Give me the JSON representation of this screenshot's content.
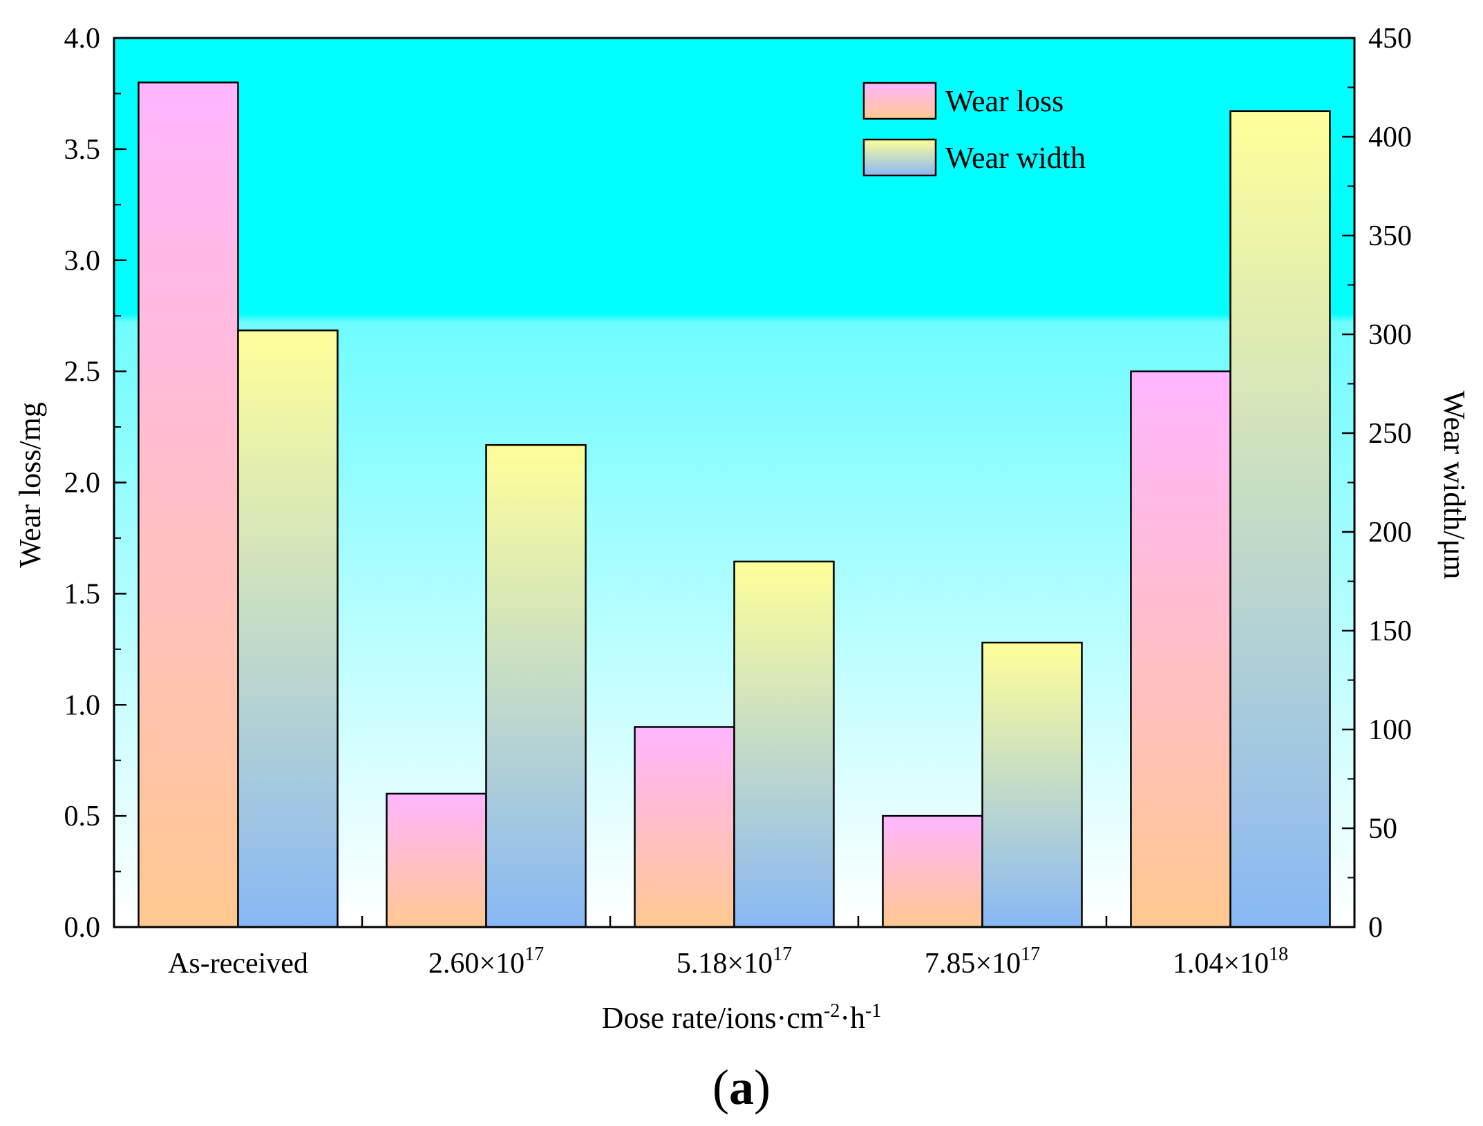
{
  "chart_data": {
    "type": "bar",
    "categories": [
      "As-received",
      "2.60×10^17",
      "5.18×10^17",
      "7.85×10^17",
      "1.04×10^18"
    ],
    "category_labels": [
      {
        "base": "As-received",
        "exp": ""
      },
      {
        "base": "2.60×10",
        "exp": "17"
      },
      {
        "base": "5.18×10",
        "exp": "17"
      },
      {
        "base": "7.85×10",
        "exp": "17"
      },
      {
        "base": "1.04×10",
        "exp": "18"
      }
    ],
    "series": [
      {
        "name": "Wear loss",
        "axis": "left",
        "values": [
          3.8,
          0.6,
          0.9,
          0.5,
          2.5
        ]
      },
      {
        "name": "Wear width",
        "axis": "right",
        "values": [
          302,
          244,
          185,
          144,
          413
        ]
      }
    ],
    "xlabel_parts": {
      "a": "Dose rate/ions·cm",
      "b": "-2",
      "c": "·h",
      "d": "-1"
    },
    "ylabel": "Wear loss/mg",
    "y2label": "Wear width/μm",
    "ylim": [
      0,
      4.0
    ],
    "y2lim": [
      0,
      450
    ],
    "yticks": [
      "0.0",
      "0.5",
      "1.0",
      "1.5",
      "2.0",
      "2.5",
      "3.0",
      "3.5",
      "4.0"
    ],
    "y2ticks": [
      "0",
      "50",
      "100",
      "150",
      "200",
      "250",
      "300",
      "350",
      "400",
      "450"
    ],
    "legend_position": "top-right",
    "panel_label": {
      "open": "(",
      "letter": "a",
      "close": ")"
    }
  },
  "colors": {
    "bg_top": "#00ffff",
    "bg_bottom": "#ffffff",
    "loss_top": "#ffb6ff",
    "loss_bottom": "#ffc890",
    "width_top": "#ffff99",
    "width_bottom": "#88b8f5"
  }
}
